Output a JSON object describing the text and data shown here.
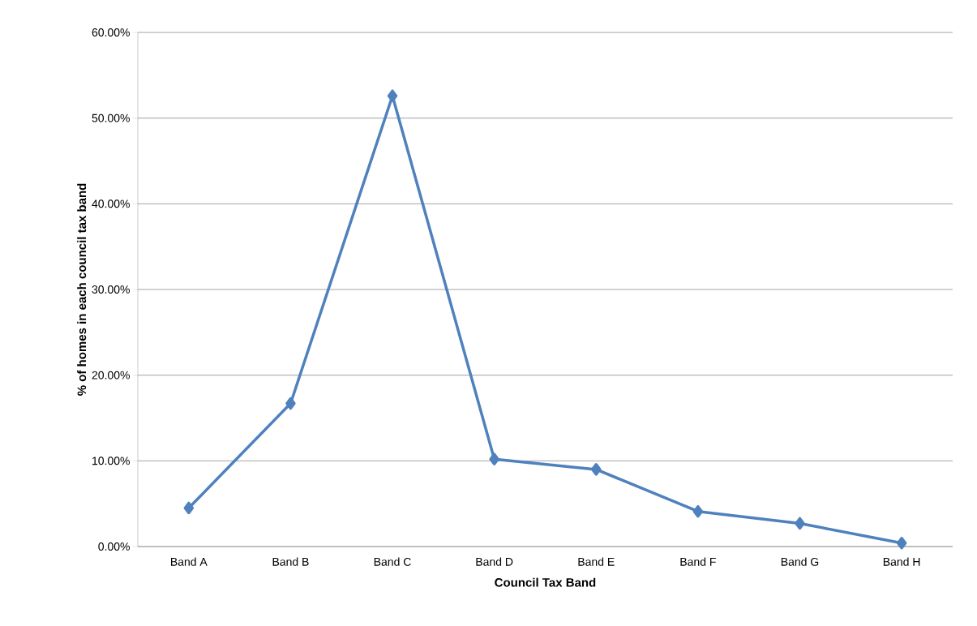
{
  "chart_data": {
    "type": "line",
    "xlabel": "Council Tax Band",
    "ylabel": "% of homes in each council tax band",
    "categories": [
      "Band A",
      "Band B",
      "Band C",
      "Band D",
      "Band E",
      "Band F",
      "Band G",
      "Band H"
    ],
    "values": [
      4.5,
      16.7,
      52.6,
      10.2,
      9.0,
      4.1,
      2.7,
      0.4
    ],
    "color": "#4f81bd",
    "marker": "diamond",
    "line_style": "solid",
    "grid": "y",
    "ylim": [
      0,
      60
    ],
    "yticks": [
      {
        "value": 0,
        "label": "0.00%"
      },
      {
        "value": 10,
        "label": "10.00%"
      },
      {
        "value": 20,
        "label": "20.00%"
      },
      {
        "value": 30,
        "label": "30.00%"
      },
      {
        "value": 40,
        "label": "40.00%"
      },
      {
        "value": 50,
        "label": "50.00%"
      },
      {
        "value": 60,
        "label": "60.00%"
      }
    ]
  }
}
